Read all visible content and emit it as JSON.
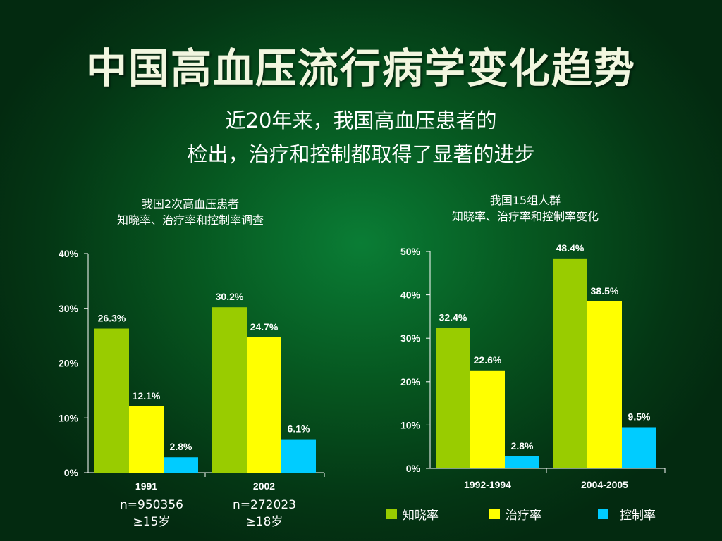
{
  "title": "中国高血压流行病学变化趋势",
  "subtitle_lines": [
    "近20年来，我国高血压患者的",
    "检出，治疗和控制都取得了显著的进步"
  ],
  "colors": {
    "awareness": "#99cc00",
    "treatment": "#ffff00",
    "control": "#00ccff"
  },
  "legend": [
    {
      "label": "知晓率",
      "color": "#99cc00"
    },
    {
      "label": "治疗率",
      "color": "#ffff00"
    },
    {
      "label": "控制率",
      "color": "#00ccff"
    }
  ],
  "chart_data": [
    {
      "type": "bar",
      "title_lines": [
        "我国2次高血压患者",
        "知晓率、治疗率和控制率调查"
      ],
      "categories": [
        "1991",
        "2002"
      ],
      "category_notes": [
        [
          "n=950356",
          "≥15岁"
        ],
        [
          "n=272023",
          "≥18岁"
        ]
      ],
      "series": [
        {
          "name": "知晓率",
          "values": [
            26.3,
            30.2
          ]
        },
        {
          "name": "治疗率",
          "values": [
            12.1,
            24.7
          ]
        },
        {
          "name": "控制率",
          "values": [
            2.8,
            6.1
          ]
        }
      ],
      "data_labels": [
        [
          "26.3%",
          "30.2%"
        ],
        [
          "12.1%",
          "24.7%"
        ],
        [
          "2.8%",
          "6.1%"
        ]
      ],
      "yticks": [
        0,
        10,
        20,
        30,
        40
      ],
      "ytick_labels": [
        "0%",
        "10%",
        "20%",
        "30%",
        "40%"
      ],
      "ylim": [
        0,
        40
      ],
      "grid": false
    },
    {
      "type": "bar",
      "title_lines": [
        "我国15组人群",
        "知晓率、治疗率和控制率变化"
      ],
      "categories": [
        "1992-1994",
        "2004-2005"
      ],
      "series": [
        {
          "name": "知晓率",
          "values": [
            32.4,
            48.4
          ]
        },
        {
          "name": "治疗率",
          "values": [
            22.6,
            38.5
          ]
        },
        {
          "name": "控制率",
          "values": [
            2.8,
            9.5
          ]
        }
      ],
      "data_labels": [
        [
          "32.4%",
          "48.4%"
        ],
        [
          "22.6%",
          "38.5%"
        ],
        [
          "2.8%",
          "9.5%"
        ]
      ],
      "yticks": [
        0,
        10,
        20,
        30,
        40,
        50
      ],
      "ytick_labels": [
        "0%",
        "10%",
        "20%",
        "30%",
        "40%",
        "50%"
      ],
      "ylim": [
        0,
        50
      ],
      "grid": false,
      "legend_position": "bottom"
    }
  ]
}
